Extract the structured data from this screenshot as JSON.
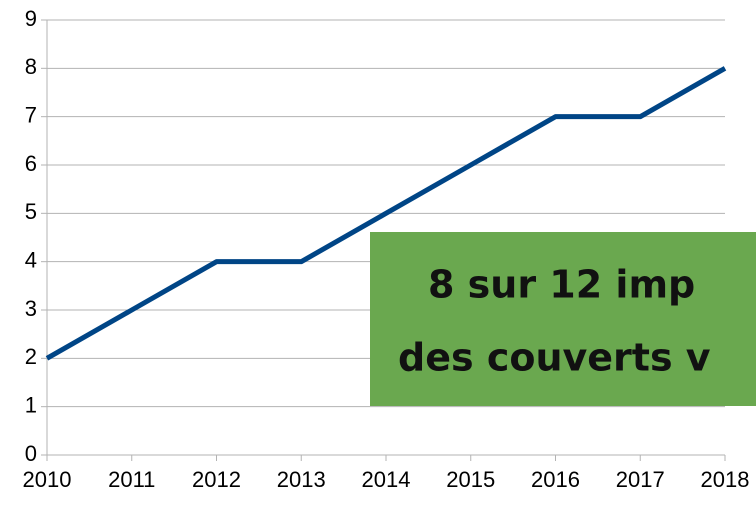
{
  "chart_data": {
    "type": "line",
    "x": [
      2010,
      2011,
      2012,
      2013,
      2014,
      2015,
      2016,
      2017,
      2018
    ],
    "values": [
      2,
      3,
      4,
      4,
      5,
      6,
      7,
      7,
      8
    ],
    "color": "#004586",
    "xlim": [
      2010,
      2018
    ],
    "xticks": [
      2010,
      2011,
      2012,
      2013,
      2014,
      2015,
      2016,
      2017,
      2018
    ],
    "ylim": [
      0,
      9
    ],
    "yticks": [
      0,
      1,
      2,
      3,
      4,
      5,
      6,
      7,
      8,
      9
    ],
    "grid": true,
    "annotation": {
      "lines": [
        "8 sur 12 imp",
        "des couverts v"
      ],
      "color": "#6aa84f"
    }
  }
}
